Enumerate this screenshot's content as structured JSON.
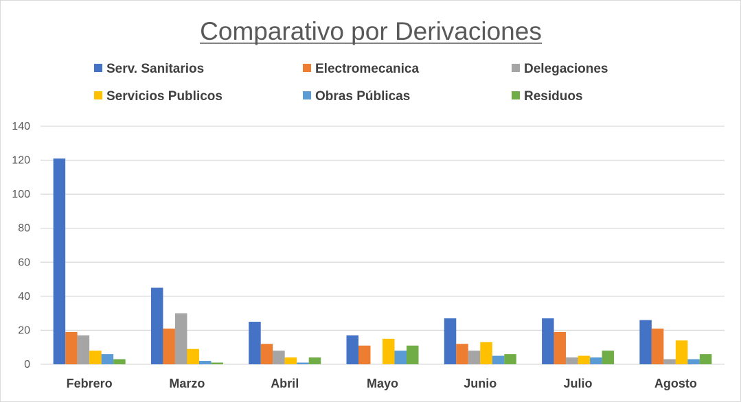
{
  "chart_data": {
    "type": "bar",
    "title": "Comparativo por Derivaciones",
    "xlabel": "",
    "ylabel": "",
    "ylim": [
      0,
      140
    ],
    "yticks": [
      0,
      20,
      40,
      60,
      80,
      100,
      120,
      140
    ],
    "grid": true,
    "legend_position": "top",
    "categories": [
      "Febrero",
      "Marzo",
      "Abril",
      "Mayo",
      "Junio",
      "Julio",
      "Agosto"
    ],
    "series": [
      {
        "name": "Serv. Sanitarios",
        "color": "#4472c4",
        "values": [
          121,
          45,
          25,
          17,
          27,
          27,
          26
        ]
      },
      {
        "name": "Electromecanica",
        "color": "#ed7d31",
        "values": [
          19,
          21,
          12,
          11,
          12,
          19,
          21
        ]
      },
      {
        "name": "Delegaciones",
        "color": "#a5a5a5",
        "values": [
          17,
          30,
          8,
          0,
          8,
          4,
          3
        ]
      },
      {
        "name": "Servicios Publicos",
        "color": "#ffc000",
        "values": [
          8,
          9,
          4,
          15,
          13,
          5,
          14
        ]
      },
      {
        "name": "Obras Públicas",
        "color": "#5b9bd5",
        "values": [
          6,
          2,
          1,
          8,
          5,
          4,
          3
        ]
      },
      {
        "name": "Residuos",
        "color": "#70ad47",
        "values": [
          3,
          1,
          4,
          11,
          6,
          8,
          6
        ]
      }
    ]
  }
}
